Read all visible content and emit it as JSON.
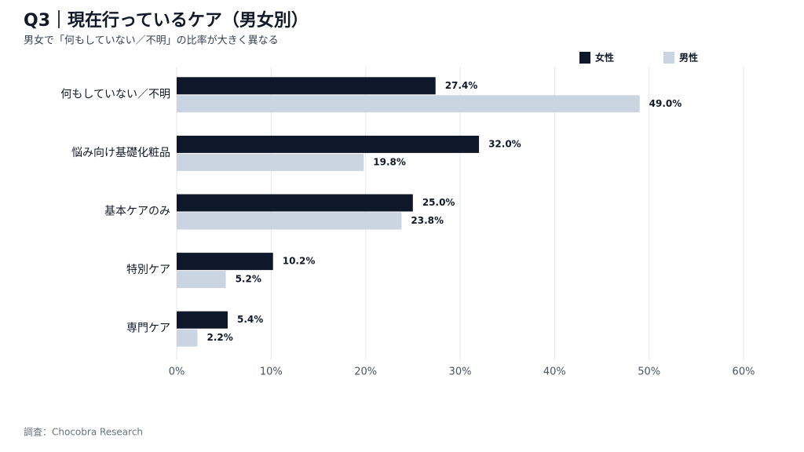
{
  "chart_data": {
    "type": "bar",
    "orientation": "horizontal",
    "title": "Q3｜現在行っているケア（男女別）",
    "subtitle": "男女で「何もしていない／不明」の比率が大きく異なる",
    "source": "調査：Chocobra Research",
    "categories": [
      "何もしていない／不明",
      "悩み向け基礎化粧品",
      "基本ケアのみ",
      "特別ケア",
      "専門ケア"
    ],
    "series": [
      {
        "name": "女性",
        "color": "#0f172a",
        "values": [
          27.4,
          32.0,
          25.0,
          10.2,
          5.4
        ],
        "value_labels": [
          "27.4%",
          "32.0%",
          "25.0%",
          "10.2%",
          "5.4%"
        ]
      },
      {
        "name": "男性",
        "color": "#cbd5e1",
        "values": [
          49.0,
          19.8,
          23.8,
          5.2,
          2.2
        ],
        "value_labels": [
          "49.0%",
          "19.8%",
          "23.8%",
          "5.2%",
          "2.2%"
        ]
      }
    ],
    "xlim": [
      0,
      60
    ],
    "xticks": [
      {
        "value": 0,
        "label": "0%"
      },
      {
        "value": 10,
        "label": "10%"
      },
      {
        "value": 20,
        "label": "20%"
      },
      {
        "value": 30,
        "label": "30%"
      },
      {
        "value": 40,
        "label": "40%"
      },
      {
        "value": 50,
        "label": "50%"
      },
      {
        "value": 60,
        "label": "60%"
      }
    ],
    "grid": true,
    "legend": "top-right"
  }
}
